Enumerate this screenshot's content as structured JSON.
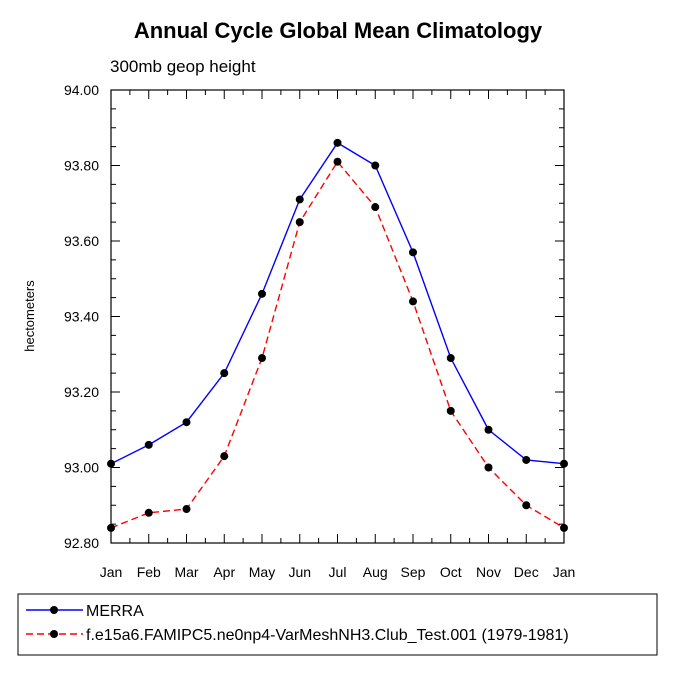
{
  "chart_data": {
    "type": "line",
    "title": "Annual Cycle Global Mean Climatology",
    "subtitle": "300mb geop height",
    "xlabel": "",
    "ylabel": "hectometers",
    "categories": [
      "Jan",
      "Feb",
      "Mar",
      "Apr",
      "May",
      "Jun",
      "Jul",
      "Aug",
      "Sep",
      "Oct",
      "Nov",
      "Dec",
      "Jan"
    ],
    "ylim": [
      92.8,
      94.0
    ],
    "yticks": [
      92.8,
      93.0,
      93.2,
      93.4,
      93.6,
      93.8,
      94.0
    ],
    "ytick_labels": [
      "92.80",
      "93.00",
      "93.20",
      "93.40",
      "93.60",
      "93.80",
      "94.00"
    ],
    "grid": false,
    "legend_position": "bottom",
    "series": [
      {
        "name": "MERRA",
        "color": "#0000ff",
        "line_style": "solid",
        "marker": "circle",
        "values": [
          93.01,
          93.06,
          93.12,
          93.25,
          93.46,
          93.71,
          93.86,
          93.8,
          93.57,
          93.29,
          93.1,
          93.02,
          93.01
        ]
      },
      {
        "name": "f.e15a6.FAMIPC5.ne0np4-VarMeshNH3.Club_Test.001 (1979-1981)",
        "color": "#ff0000",
        "line_style": "dashed",
        "marker": "circle",
        "values": [
          92.84,
          92.88,
          92.89,
          93.03,
          93.29,
          93.65,
          93.81,
          93.69,
          93.44,
          93.15,
          93.0,
          92.9,
          92.84
        ]
      }
    ]
  }
}
